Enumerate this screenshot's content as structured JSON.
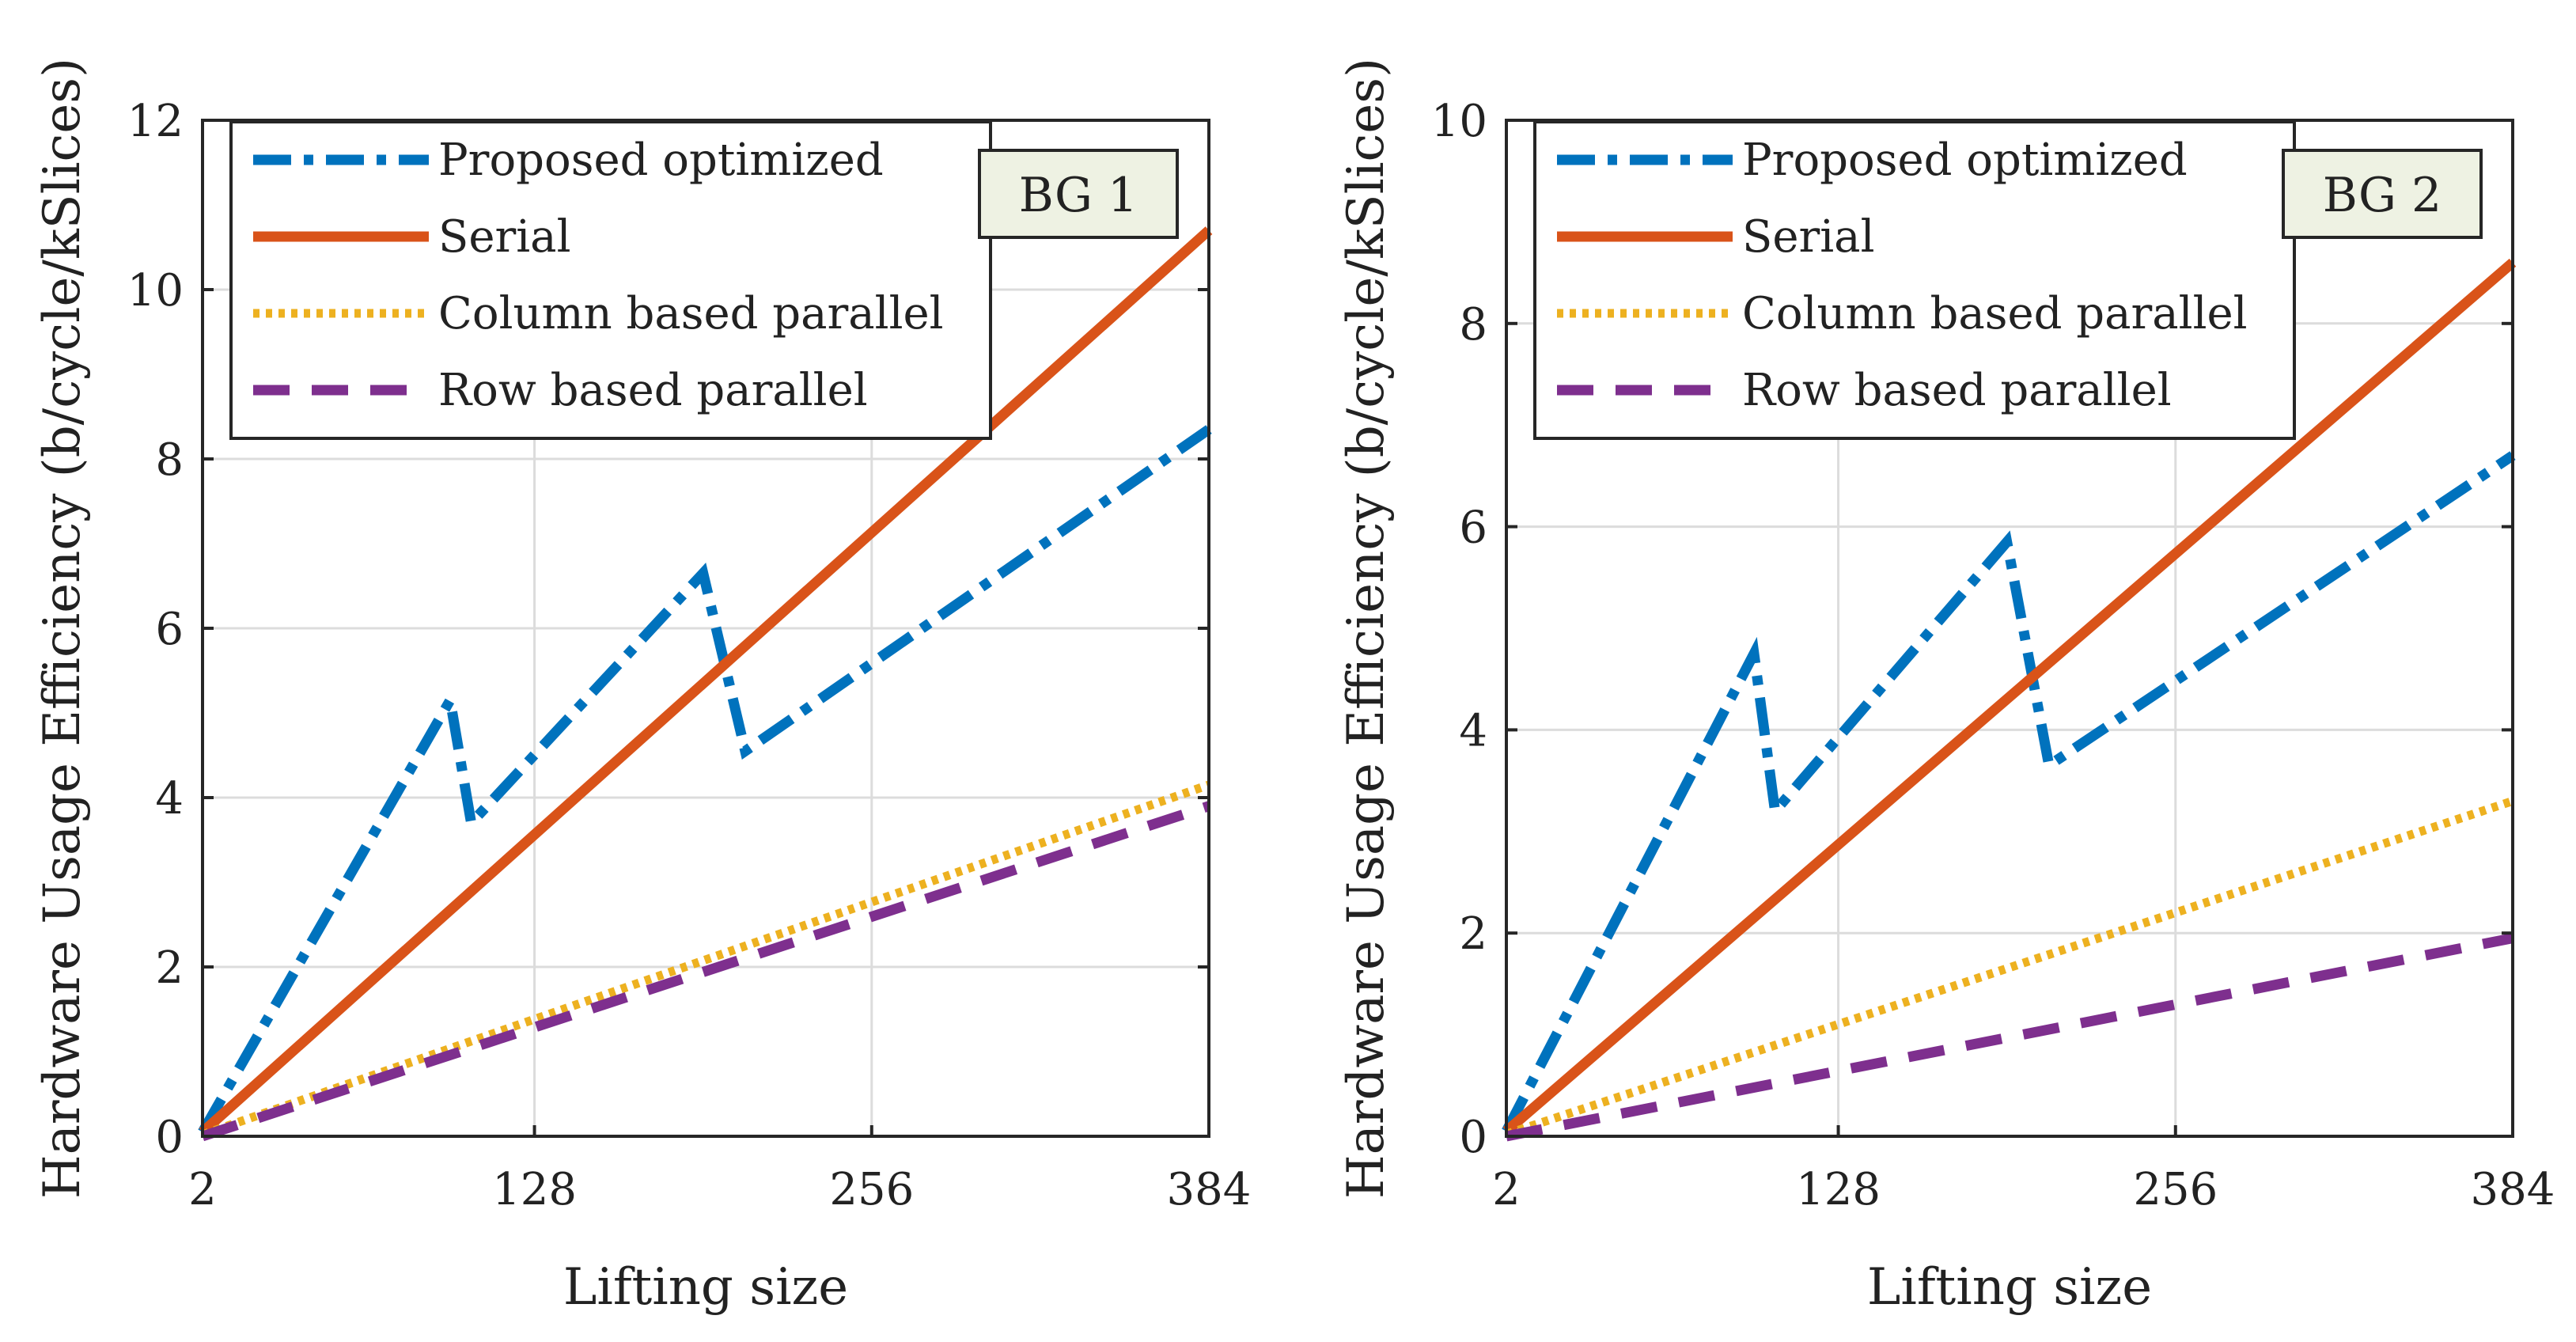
{
  "figure": {
    "panel_count": 2
  },
  "chart_data": [
    {
      "type": "line",
      "tag": "BG 1",
      "xlabel": "Lifting size",
      "ylabel": "Hardware Usage Efficiency (b/cycle/kSlices)",
      "xlim": [
        2,
        384
      ],
      "ylim": [
        0,
        12
      ],
      "xticks": [
        2,
        128,
        256,
        384
      ],
      "yticks": [
        0,
        2,
        4,
        6,
        8,
        10,
        12
      ],
      "grid": true,
      "legend_position": "top-left",
      "series": [
        {
          "name": "Proposed optimized",
          "color": "#0072BD",
          "style": "dashdot",
          "points": [
            [
              2,
              0.05
            ],
            [
              96,
              5.15
            ],
            [
              104,
              3.7
            ],
            [
              192,
              6.65
            ],
            [
              208,
              4.55
            ],
            [
              384,
              8.35
            ]
          ]
        },
        {
          "name": "Serial",
          "color": "#D95319",
          "style": "solid",
          "points": [
            [
              2,
              0.05
            ],
            [
              384,
              10.7
            ]
          ]
        },
        {
          "name": "Column based parallel",
          "color": "#EDB120",
          "style": "dotted",
          "points": [
            [
              2,
              0.02
            ],
            [
              384,
              4.15
            ]
          ]
        },
        {
          "name": "Row based parallel",
          "color": "#7E2F8E",
          "style": "dashed",
          "points": [
            [
              2,
              0.0
            ],
            [
              384,
              3.9
            ]
          ]
        }
      ]
    },
    {
      "type": "line",
      "tag": "BG 2",
      "xlabel": "Lifting size",
      "ylabel": "Hardware Usage Efficiency (b/cycle/kSlices)",
      "xlim": [
        2,
        384
      ],
      "ylim": [
        0,
        10
      ],
      "xticks": [
        2,
        128,
        256,
        384
      ],
      "yticks": [
        0,
        2,
        4,
        6,
        8,
        10
      ],
      "grid": true,
      "legend_position": "top-left",
      "series": [
        {
          "name": "Proposed optimized",
          "color": "#0072BD",
          "style": "dashdot",
          "points": [
            [
              2,
              0.05
            ],
            [
              96,
              4.75
            ],
            [
              104,
              3.2
            ],
            [
              192,
              5.85
            ],
            [
              208,
              3.65
            ],
            [
              384,
              6.7
            ]
          ]
        },
        {
          "name": "Serial",
          "color": "#D95319",
          "style": "solid",
          "points": [
            [
              2,
              0.05
            ],
            [
              384,
              8.6
            ]
          ]
        },
        {
          "name": "Column based parallel",
          "color": "#EDB120",
          "style": "dotted",
          "points": [
            [
              2,
              0.02
            ],
            [
              384,
              3.3
            ]
          ]
        },
        {
          "name": "Row based parallel",
          "color": "#7E2F8E",
          "style": "dashed",
          "points": [
            [
              2,
              0.0
            ],
            [
              384,
              1.95
            ]
          ]
        }
      ]
    }
  ]
}
